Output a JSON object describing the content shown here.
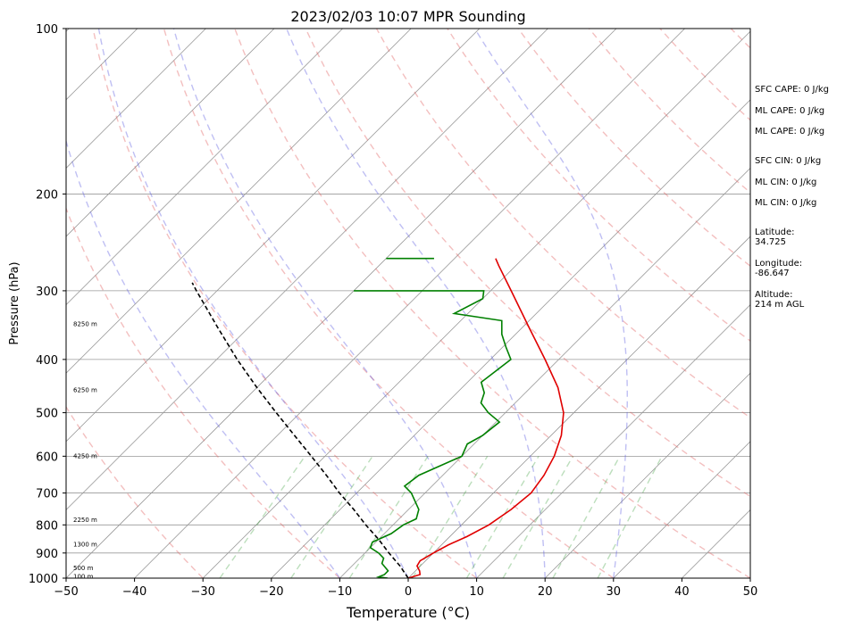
{
  "chart_data": {
    "type": "line",
    "title": "2023/02/03 10:07 MPR Sounding",
    "xlabel": "Temperature (°C)",
    "ylabel": "Pressure (hPa)",
    "xlim": [
      -50,
      50
    ],
    "ylim": [
      1000,
      100
    ],
    "y_scale": "log",
    "x_ticks": [
      -50,
      -40,
      -30,
      -20,
      -10,
      0,
      10,
      20,
      30,
      40,
      50
    ],
    "x_tick_labels": [
      "−50",
      "−40",
      "−30",
      "−20",
      "−10",
      "0",
      "10",
      "20",
      "30",
      "40",
      "50"
    ],
    "y_ticks": [
      100,
      200,
      300,
      400,
      500,
      600,
      700,
      800,
      900,
      1000
    ],
    "y_tick_labels": [
      "100",
      "200",
      "300",
      "400",
      "500",
      "600",
      "700",
      "800",
      "900",
      "1000"
    ],
    "grid": true,
    "skew": true,
    "series": [
      {
        "role": "temperature",
        "color": "#e00000",
        "points": [
          [
            1000,
            0.0
          ],
          [
            985,
            1.2
          ],
          [
            970,
            0.6
          ],
          [
            950,
            -0.5
          ],
          [
            930,
            -0.8
          ],
          [
            900,
            0.0
          ],
          [
            870,
            1.0
          ],
          [
            840,
            2.5
          ],
          [
            800,
            4.0
          ],
          [
            750,
            5.0
          ],
          [
            700,
            5.5
          ],
          [
            650,
            4.8
          ],
          [
            600,
            3.5
          ],
          [
            550,
            1.5
          ],
          [
            500,
            -1.5
          ],
          [
            450,
            -6.0
          ],
          [
            400,
            -12.0
          ],
          [
            350,
            -19.0
          ],
          [
            300,
            -27.0
          ],
          [
            270,
            -32.5
          ],
          [
            262,
            -34.0
          ]
        ]
      },
      {
        "role": "dewpoint",
        "color": "#008000",
        "points": [
          [
            1000,
            -3.0
          ],
          [
            995,
            -4.5
          ],
          [
            985,
            -4.0
          ],
          [
            970,
            -4.0
          ],
          [
            940,
            -6.0
          ],
          [
            920,
            -6.5
          ],
          [
            900,
            -8.0
          ],
          [
            880,
            -10.0
          ],
          [
            860,
            -10.5
          ],
          [
            830,
            -9.0
          ],
          [
            800,
            -8.5
          ],
          [
            780,
            -7.5
          ],
          [
            750,
            -8.5
          ],
          [
            700,
            -12.0
          ],
          [
            680,
            -14.0
          ],
          [
            650,
            -13.5
          ],
          [
            600,
            -10.0
          ],
          [
            570,
            -11.0
          ],
          [
            550,
            -10.0
          ],
          [
            520,
            -9.5
          ],
          [
            500,
            -12.5
          ],
          [
            480,
            -15.0
          ],
          [
            460,
            -16.0
          ],
          [
            440,
            -18.0
          ],
          [
            420,
            -17.5
          ],
          [
            400,
            -17.0
          ],
          [
            380,
            -19.5
          ],
          [
            360,
            -22.0
          ],
          [
            340,
            -24.0
          ],
          [
            330,
            -32.0
          ],
          [
            310,
            -30.0
          ],
          [
            300,
            -31.0
          ],
          [
            300,
            -50.0
          ]
        ]
      },
      {
        "role": "parcel",
        "color": "#000000",
        "style": "dashed",
        "points": [
          [
            1000,
            0.0
          ],
          [
            950,
            -3.0
          ],
          [
            900,
            -6.5
          ],
          [
            850,
            -10.0
          ],
          [
            800,
            -14.0
          ],
          [
            750,
            -18.0
          ],
          [
            700,
            -22.5
          ],
          [
            650,
            -27.0
          ],
          [
            600,
            -32.0
          ],
          [
            550,
            -37.5
          ],
          [
            500,
            -43.5
          ],
          [
            450,
            -50.0
          ],
          [
            400,
            -57.0
          ],
          [
            350,
            -64.5
          ],
          [
            300,
            -73.0
          ],
          [
            290,
            -74.8
          ]
        ]
      }
    ],
    "upper_dewpoint_segment": {
      "pressure": 262,
      "temps": [
        -50,
        -43.0
      ]
    },
    "height_labels": [
      {
        "p": 995,
        "text": "100 m"
      },
      {
        "p": 960,
        "text": "500 m"
      },
      {
        "p": 870,
        "text": "1300 m"
      },
      {
        "p": 785,
        "text": "2250 m"
      },
      {
        "p": 600,
        "text": "4250 m"
      },
      {
        "p": 455,
        "text": "6250 m"
      },
      {
        "p": 345,
        "text": "8250 m"
      }
    ],
    "dry_adiabat_thetas": [
      -30,
      -10,
      10,
      30,
      50,
      70,
      90,
      110,
      130,
      150,
      170,
      190
    ],
    "moist_adiabat_starts": [
      -10,
      0,
      10,
      20,
      30
    ],
    "mixing_ratios": [
      0.4,
      1,
      2,
      4,
      7,
      10,
      16,
      24
    ],
    "isotherm_step": 10,
    "colors": {
      "dry_adiabat": "#e06060",
      "moist_adiabat": "#6060e0",
      "mixing_ratio": "#40a040",
      "isotherm": "#999999"
    }
  },
  "sidebar": {
    "sfc_cape": "SFC CAPE: 0 J/kg",
    "ml_cape_1": "ML CAPE: 0 J/kg",
    "ml_cape_2": "ML CAPE: 0 J/kg",
    "sfc_cin": "SFC CIN: 0 J/kg",
    "ml_cin_1": "ML CIN: 0 J/kg",
    "ml_cin_2": "ML CIN: 0 J/kg",
    "latitude": "Latitude:\n34.725",
    "longitude": "Longitude:\n-86.647",
    "altitude": "Altitude:\n214 m AGL"
  }
}
